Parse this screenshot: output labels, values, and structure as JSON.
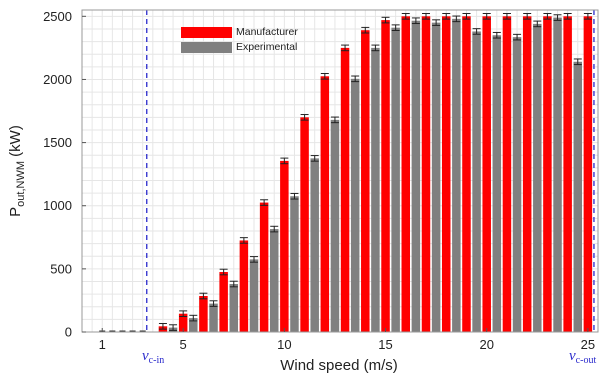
{
  "chart_data": {
    "type": "bar",
    "xlabel": "Wind speed (m/s)",
    "ylabel": "P_out,NWM (kW)",
    "ylabel_main": "P",
    "ylabel_sub": "out,NWM",
    "ylabel_unit": " (kW)",
    "xlim": [
      0,
      25.5
    ],
    "ylim": [
      0,
      2550
    ],
    "x_ticks": [
      1,
      5,
      10,
      15,
      20,
      25
    ],
    "x_tick_labels": [
      "1",
      "5",
      "10",
      "15",
      "20",
      "25"
    ],
    "y_ticks": [
      0,
      500,
      1000,
      1500,
      2000,
      2500
    ],
    "y_tick_labels": [
      "0",
      "500",
      "1000",
      "1500",
      "2000",
      "2500"
    ],
    "grid": true,
    "legend_placement": "top-left",
    "x": [
      1,
      1.5,
      2,
      2.5,
      3,
      3.5,
      4,
      4.5,
      5,
      5.5,
      6,
      6.5,
      7,
      7.5,
      8,
      8.5,
      9,
      9.5,
      10,
      10.5,
      11,
      11.5,
      12,
      12.5,
      13,
      13.5,
      14,
      14.5,
      15,
      15.5,
      16,
      16.5,
      17,
      17.5,
      18,
      18.5,
      19,
      19.5,
      20,
      20.5,
      21,
      21.5,
      22,
      22.5,
      23,
      23.5,
      24,
      24.5,
      25
    ],
    "series": [
      {
        "name": "Manufacturer",
        "color": "#ff0000",
        "values": [
          0,
          0,
          0,
          0,
          0,
          0,
          45,
          0,
          145,
          0,
          285,
          0,
          475,
          0,
          725,
          0,
          1025,
          0,
          1355,
          0,
          1700,
          0,
          2025,
          0,
          2250,
          0,
          2390,
          0,
          2470,
          0,
          2500,
          0,
          2500,
          0,
          2500,
          0,
          2500,
          0,
          2500,
          0,
          2500,
          0,
          2500,
          0,
          2500,
          0,
          2500,
          0,
          2500
        ]
      },
      {
        "name": "Experimental",
        "color": "#808080",
        "values": [
          0,
          0,
          0,
          0,
          0,
          0,
          0,
          35,
          0,
          110,
          0,
          225,
          0,
          380,
          0,
          575,
          0,
          815,
          0,
          1075,
          0,
          1375,
          0,
          1680,
          0,
          2005,
          0,
          2250,
          0,
          2410,
          0,
          2465,
          0,
          2450,
          0,
          2480,
          0,
          2380,
          0,
          2350,
          0,
          2335,
          0,
          2440,
          0,
          2490,
          0,
          2140,
          0
        ]
      }
    ],
    "cut_in": {
      "x": 3.2,
      "label_main": "v",
      "label_sub": "c-in"
    },
    "cut_out": {
      "x": 25.3,
      "label_main": "v",
      "label_sub": "c-out"
    }
  }
}
